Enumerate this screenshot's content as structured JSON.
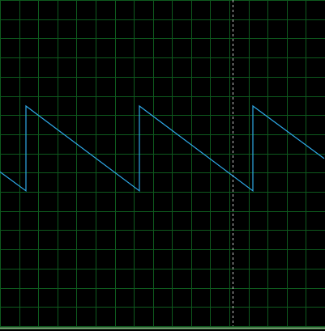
{
  "colors": {
    "background": "#000000",
    "grid": "#0e5a1e",
    "trace": "#2ea8e6",
    "cursor": "#c8c8c8",
    "frame": "#7fbf7f"
  },
  "grid": {
    "columns": 17,
    "rows": 17
  },
  "cursor": {
    "visible": true,
    "position": 0.715
  },
  "signal": {
    "shape": "sawtooth-falling",
    "high": 0.675,
    "low": 0.415,
    "points": [
      [
        0.0,
        0.473
      ],
      [
        0.08,
        0.415
      ],
      [
        0.08,
        0.675
      ],
      [
        0.43,
        0.415
      ],
      [
        0.43,
        0.675
      ],
      [
        0.78,
        0.415
      ],
      [
        0.78,
        0.675
      ],
      [
        1.0,
        0.514
      ]
    ]
  }
}
